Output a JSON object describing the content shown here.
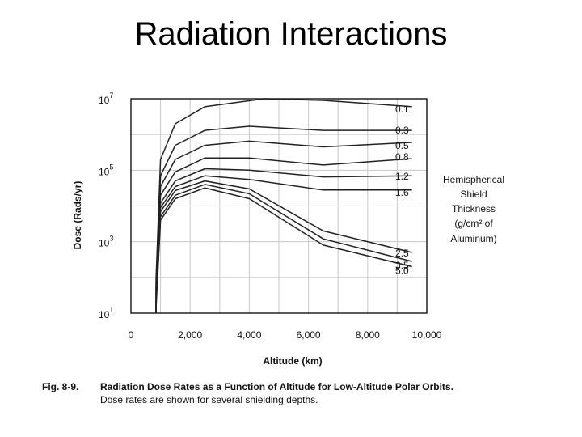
{
  "slide": {
    "title": "Radiation Interactions"
  },
  "legend_note": {
    "lines": [
      "Hemispherical",
      "Shield",
      "Thickness",
      "(g/cm² of",
      "Aluminum)"
    ]
  },
  "figure": {
    "caption_label": "Fig. 8-9.",
    "caption_title": "Radiation Dose Rates as a Function of Altitude for Low-Altitude Polar Orbits.",
    "caption_sub": "Dose rates are shown for several shielding depths."
  },
  "chart_data": {
    "type": "line",
    "title": "",
    "xlabel": "Altitude (km)",
    "ylabel": "Dose (Rads/yr)",
    "xlim": [
      0,
      10000
    ],
    "ylim": [
      10,
      10000000
    ],
    "y_scale": "log",
    "grid": true,
    "x_ticks": [
      0,
      2000,
      4000,
      6000,
      8000,
      10000
    ],
    "x_tick_labels": [
      "0",
      "2,000",
      "4,000",
      "6,000",
      "8,000",
      "10,000"
    ],
    "y_ticks": [
      {
        "base": "10",
        "exp": "1",
        "value": 10
      },
      {
        "base": "10",
        "exp": "3",
        "value": 1000
      },
      {
        "base": "10",
        "exp": "5",
        "value": 100000
      },
      {
        "base": "10",
        "exp": "7",
        "value": 10000000
      }
    ],
    "series": [
      {
        "name": "0.1",
        "x": [
          850,
          1000,
          1500,
          2500,
          4500,
          6500,
          9500
        ],
        "y": [
          100,
          200000,
          2000000,
          6000000,
          10000000,
          9000000,
          6000000
        ]
      },
      {
        "name": "0.3",
        "x": [
          850,
          1000,
          1500,
          2500,
          4000,
          6500,
          9500
        ],
        "y": [
          80,
          70000,
          500000,
          1300000,
          1700000,
          1300000,
          1300000
        ]
      },
      {
        "name": "0.5",
        "x": [
          850,
          1000,
          1500,
          2500,
          4000,
          6500,
          9500
        ],
        "y": [
          60,
          35000,
          200000,
          500000,
          650000,
          450000,
          600000
        ]
      },
      {
        "name": "0.8",
        "x": [
          850,
          1000,
          1500,
          2500,
          4000,
          6500,
          9500
        ],
        "y": [
          50,
          20000,
          90000,
          220000,
          220000,
          140000,
          210000
        ]
      },
      {
        "name": "1.2",
        "x": [
          850,
          1000,
          1500,
          2500,
          4000,
          6500,
          9500
        ],
        "y": [
          40,
          12000,
          50000,
          110000,
          100000,
          65000,
          70000
        ]
      },
      {
        "name": "1.6",
        "x": [
          850,
          1000,
          1500,
          2500,
          4000,
          6500,
          9500
        ],
        "y": [
          30,
          9000,
          35000,
          70000,
          55000,
          28000,
          28000
        ]
      },
      {
        "name": "2.5",
        "x": [
          850,
          1000,
          1500,
          2500,
          4000,
          6500,
          9500
        ],
        "y": [
          25,
          7000,
          27000,
          50000,
          30000,
          2000,
          500
        ]
      },
      {
        "name": "3.5",
        "x": [
          850,
          1000,
          1500,
          2500,
          4000,
          6500,
          9500
        ],
        "y": [
          20,
          5000,
          20000,
          40000,
          22000,
          1200,
          280
        ]
      },
      {
        "name": "5.0",
        "x": [
          850,
          1000,
          1500,
          2500,
          4000,
          6500,
          9500
        ],
        "y": [
          15,
          4000,
          16000,
          32000,
          16000,
          800,
          200
        ]
      }
    ]
  }
}
